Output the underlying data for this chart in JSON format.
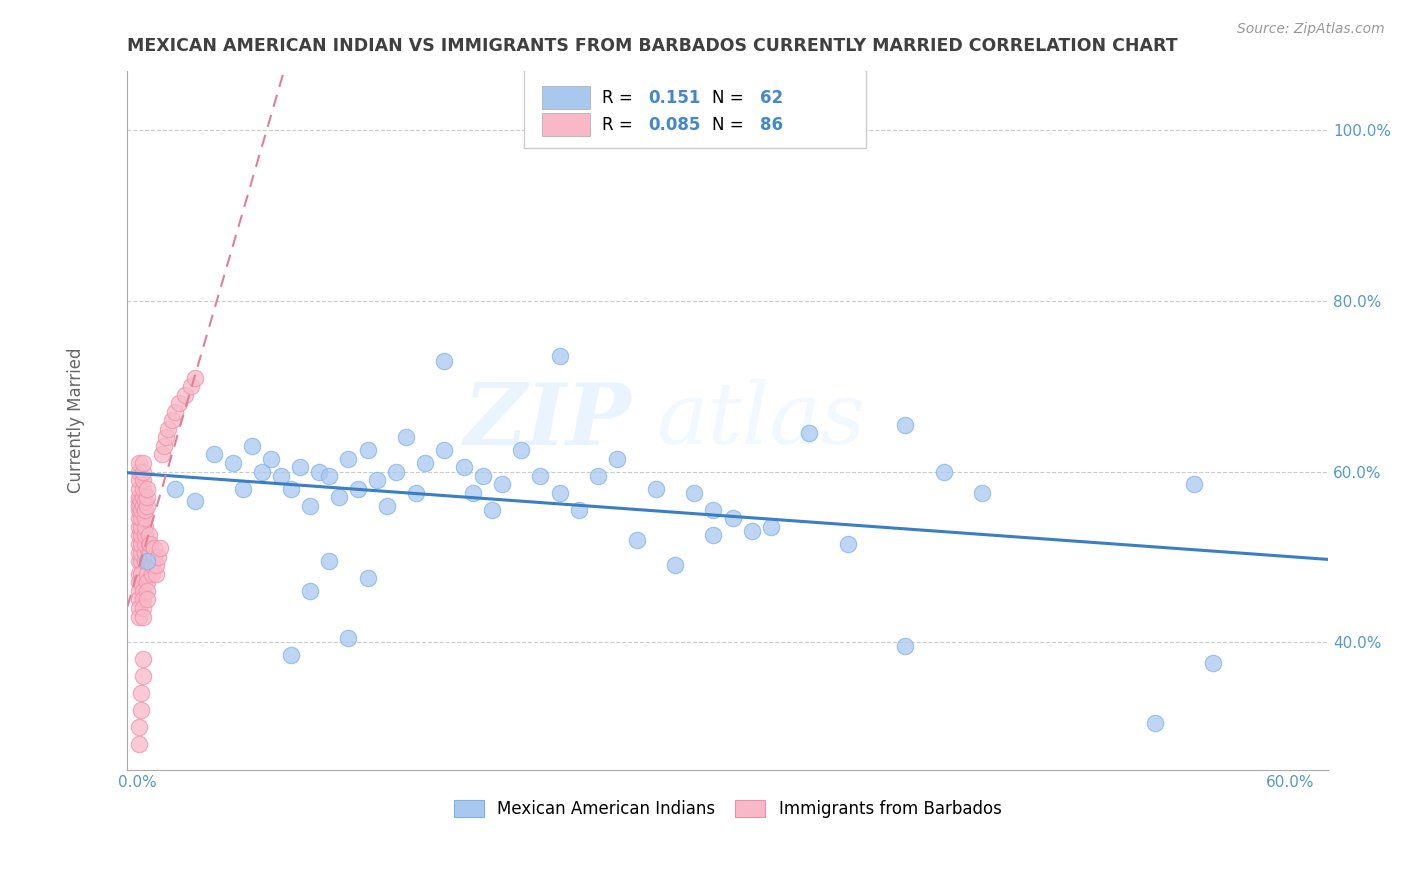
{
  "title": "MEXICAN AMERICAN INDIAN VS IMMIGRANTS FROM BARBADOS CURRENTLY MARRIED CORRELATION CHART",
  "source": "Source: ZipAtlas.com",
  "ylabel": "Currently Married",
  "xlim": [
    -0.005,
    0.62
  ],
  "ylim": [
    0.25,
    1.07
  ],
  "x_ticks": [
    0.0,
    0.1,
    0.2,
    0.3,
    0.4,
    0.5,
    0.6
  ],
  "x_tick_labels": [
    "0.0%",
    "",
    "",
    "",
    "",
    "",
    "60.0%"
  ],
  "y_ticks": [
    0.4,
    0.6,
    0.8,
    1.0
  ],
  "y_tick_labels": [
    "40.0%",
    "60.0%",
    "80.0%",
    "100.0%"
  ],
  "series1_label": "Mexican American Indians",
  "series1_color": "#A8C8F0",
  "series1_edge": "#7EB3E8",
  "series1_R": "0.151",
  "series1_N": "62",
  "series1_line_color": "#3A7EC6",
  "series2_label": "Immigrants from Barbados",
  "series2_color": "#F8B8C8",
  "series2_edge": "#F090A8",
  "series2_R": "0.085",
  "series2_N": "86",
  "series2_line_color": "#E08098",
  "watermark_zip": "ZIP",
  "watermark_atlas": "atlas",
  "background_color": "#ffffff",
  "grid_color": "#cccccc",
  "title_color": "#404040",
  "legend_R_color": "#000000",
  "legend_N_color": "#4488CC",
  "blue_x": [
    0.005,
    0.02,
    0.03,
    0.04,
    0.05,
    0.055,
    0.06,
    0.065,
    0.07,
    0.075,
    0.08,
    0.085,
    0.09,
    0.095,
    0.1,
    0.105,
    0.11,
    0.115,
    0.12,
    0.125,
    0.13,
    0.135,
    0.14,
    0.145,
    0.15,
    0.16,
    0.17,
    0.175,
    0.18,
    0.185,
    0.19,
    0.2,
    0.21,
    0.22,
    0.23,
    0.24,
    0.25,
    0.26,
    0.27,
    0.28,
    0.29,
    0.3,
    0.31,
    0.32,
    0.33,
    0.35,
    0.37,
    0.4,
    0.42,
    0.44,
    0.3,
    0.08,
    0.55,
    0.4,
    0.09,
    0.1,
    0.11,
    0.12,
    0.53,
    0.56,
    0.16,
    0.22
  ],
  "blue_y": [
    0.495,
    0.58,
    0.565,
    0.62,
    0.61,
    0.58,
    0.63,
    0.6,
    0.615,
    0.595,
    0.58,
    0.605,
    0.56,
    0.6,
    0.595,
    0.57,
    0.615,
    0.58,
    0.625,
    0.59,
    0.56,
    0.6,
    0.64,
    0.575,
    0.61,
    0.625,
    0.605,
    0.575,
    0.595,
    0.555,
    0.585,
    0.625,
    0.595,
    0.575,
    0.555,
    0.595,
    0.615,
    0.52,
    0.58,
    0.49,
    0.575,
    0.555,
    0.545,
    0.53,
    0.535,
    0.645,
    0.515,
    0.655,
    0.6,
    0.575,
    0.525,
    0.385,
    0.585,
    0.395,
    0.46,
    0.495,
    0.405,
    0.475,
    0.305,
    0.375,
    0.73,
    0.735
  ],
  "pink_x": [
    0.001,
    0.001,
    0.001,
    0.001,
    0.001,
    0.001,
    0.001,
    0.001,
    0.001,
    0.001,
    0.001,
    0.001,
    0.001,
    0.001,
    0.001,
    0.001,
    0.001,
    0.001,
    0.001,
    0.001,
    0.002,
    0.002,
    0.002,
    0.002,
    0.002,
    0.002,
    0.002,
    0.002,
    0.002,
    0.002,
    0.003,
    0.003,
    0.003,
    0.003,
    0.003,
    0.003,
    0.003,
    0.003,
    0.003,
    0.003,
    0.004,
    0.004,
    0.004,
    0.004,
    0.004,
    0.004,
    0.004,
    0.004,
    0.005,
    0.005,
    0.005,
    0.005,
    0.005,
    0.005,
    0.005,
    0.006,
    0.006,
    0.006,
    0.006,
    0.007,
    0.007,
    0.007,
    0.008,
    0.008,
    0.009,
    0.009,
    0.01,
    0.01,
    0.011,
    0.012,
    0.013,
    0.014,
    0.015,
    0.016,
    0.018,
    0.02,
    0.022,
    0.025,
    0.028,
    0.03,
    0.001,
    0.001,
    0.002,
    0.002,
    0.003,
    0.003
  ],
  "pink_y": [
    0.495,
    0.505,
    0.515,
    0.525,
    0.535,
    0.545,
    0.555,
    0.565,
    0.48,
    0.47,
    0.46,
    0.45,
    0.44,
    0.43,
    0.56,
    0.57,
    0.58,
    0.59,
    0.6,
    0.61,
    0.495,
    0.505,
    0.515,
    0.525,
    0.535,
    0.545,
    0.555,
    0.565,
    0.48,
    0.47,
    0.46,
    0.45,
    0.44,
    0.43,
    0.56,
    0.57,
    0.58,
    0.59,
    0.6,
    0.61,
    0.495,
    0.505,
    0.515,
    0.525,
    0.535,
    0.545,
    0.555,
    0.565,
    0.48,
    0.47,
    0.46,
    0.45,
    0.56,
    0.57,
    0.58,
    0.495,
    0.505,
    0.515,
    0.525,
    0.495,
    0.505,
    0.515,
    0.48,
    0.49,
    0.5,
    0.51,
    0.48,
    0.49,
    0.5,
    0.51,
    0.62,
    0.63,
    0.64,
    0.65,
    0.66,
    0.67,
    0.68,
    0.69,
    0.7,
    0.71,
    0.3,
    0.28,
    0.32,
    0.34,
    0.36,
    0.38
  ]
}
